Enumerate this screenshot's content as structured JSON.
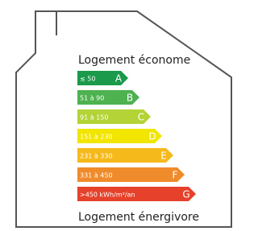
{
  "header": {
    "title": "Logement économe"
  },
  "ratings": [
    {
      "range": "≤ 50",
      "letter": "A",
      "color": "#1a9a4a"
    },
    {
      "range": "51 à 90",
      "letter": "B",
      "color": "#4db24f"
    },
    {
      "range": "91 à 150",
      "letter": "C",
      "color": "#b3d336"
    },
    {
      "range": "151 à 230",
      "letter": "D",
      "color": "#f2e500"
    },
    {
      "range": "231 à 330",
      "letter": "E",
      "color": "#f6b91c"
    },
    {
      "range": "331 à 450",
      "letter": "F",
      "color": "#ef8b2b"
    },
    {
      "range": ">450 kWh/m²/an",
      "letter": "G",
      "color": "#e5412b"
    }
  ],
  "footer": {
    "title": "Logement énergivore"
  }
}
